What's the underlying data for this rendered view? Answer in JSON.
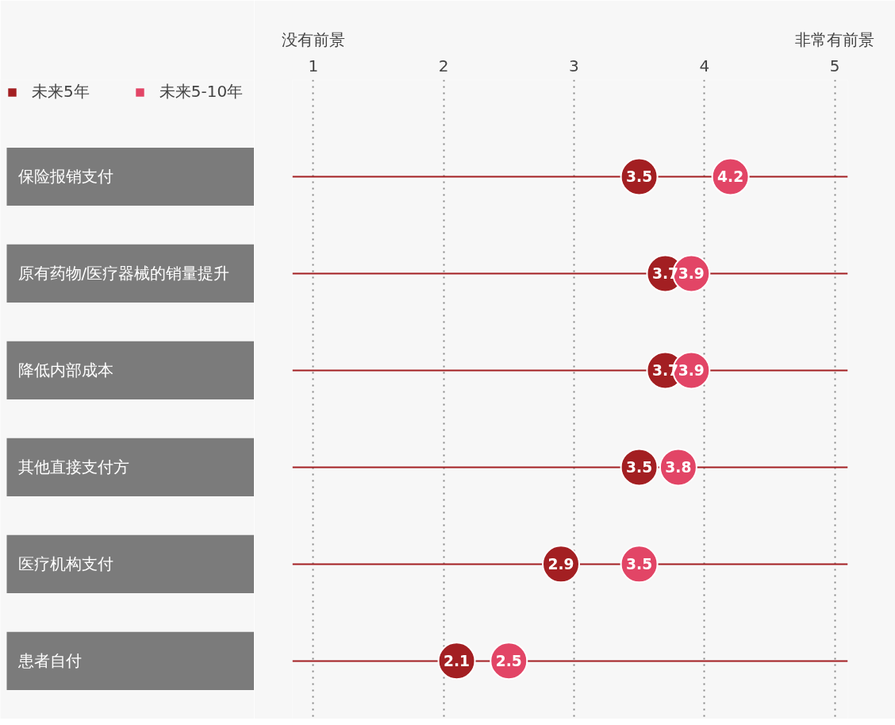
{
  "chart_data": {
    "type": "scatter",
    "orientation": "horizontal",
    "categories": [
      "保险报销支付",
      "原有药物/医疗器械的销量提升",
      "降低内部成本",
      "其他直接支付方",
      "医疗机构支付",
      "患者自付"
    ],
    "series": [
      {
        "name": "未来5年",
        "color": "#a31f22",
        "values": [
          3.5,
          3.7,
          3.7,
          3.5,
          2.9,
          2.1
        ]
      },
      {
        "name": "未来5-10年",
        "color": "#e24566",
        "values": [
          4.2,
          3.9,
          3.9,
          3.8,
          3.5,
          2.5
        ]
      }
    ],
    "xlim": [
      0.84,
      5.1
    ],
    "xticks": [
      1,
      2,
      3,
      4,
      5
    ],
    "annotations": [
      "没有前景",
      "非常有前景"
    ],
    "data_labels": true,
    "grid": true,
    "legend": "top left",
    "marker": "circle"
  }
}
